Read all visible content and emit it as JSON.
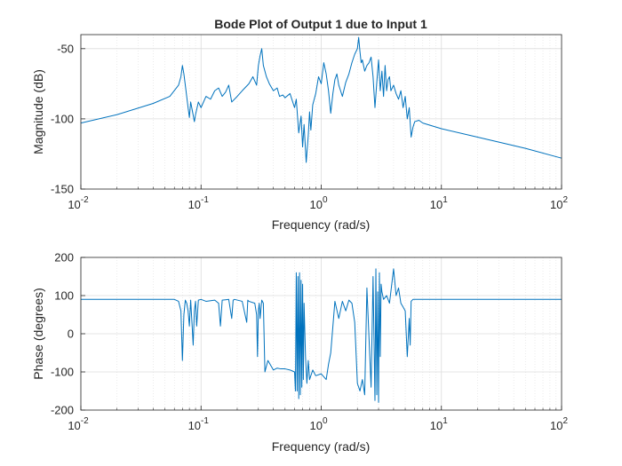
{
  "chart_data": [
    {
      "type": "line",
      "title": "Bode Plot of Output 1 due to Input 1",
      "xlabel": "Frequency (rad/s)",
      "ylabel": "Magnitude (dB)",
      "xscale": "log",
      "xlim": [
        0.01,
        100
      ],
      "ylim": [
        -150,
        -40
      ],
      "grid": true,
      "x_ticks": [
        {
          "base": "10",
          "exp": "-2"
        },
        {
          "base": "10",
          "exp": "-1"
        },
        {
          "base": "10",
          "exp": "0"
        },
        {
          "base": "10",
          "exp": "1"
        },
        {
          "base": "10",
          "exp": "2"
        }
      ],
      "y_ticks": [
        -50,
        -100,
        -150
      ],
      "series": [
        {
          "color": "#0072BD",
          "x": [
            0.01,
            0.02,
            0.04,
            0.055,
            0.065,
            0.068,
            0.07,
            0.072,
            0.075,
            0.078,
            0.08,
            0.082,
            0.085,
            0.088,
            0.09,
            0.095,
            0.1,
            0.11,
            0.12,
            0.13,
            0.14,
            0.15,
            0.16,
            0.17,
            0.18,
            0.2,
            0.22,
            0.25,
            0.27,
            0.29,
            0.3,
            0.31,
            0.32,
            0.33,
            0.35,
            0.37,
            0.4,
            0.43,
            0.45,
            0.48,
            0.5,
            0.55,
            0.6,
            0.62,
            0.65,
            0.68,
            0.7,
            0.72,
            0.75,
            0.78,
            0.8,
            0.82,
            0.85,
            0.9,
            0.95,
            1.0,
            1.05,
            1.1,
            1.15,
            1.2,
            1.25,
            1.3,
            1.35,
            1.4,
            1.5,
            1.6,
            1.7,
            1.8,
            1.9,
            2.0,
            2.05,
            2.1,
            2.15,
            2.2,
            2.3,
            2.4,
            2.5,
            2.6,
            2.7,
            2.8,
            2.9,
            3.0,
            3.1,
            3.2,
            3.3,
            3.4,
            3.5,
            3.6,
            3.7,
            3.8,
            4.0,
            4.2,
            4.4,
            4.6,
            4.8,
            5.0,
            5.2,
            5.4,
            5.6,
            5.8,
            6.0,
            6.5,
            7.0,
            10,
            20,
            50,
            100
          ],
          "y": [
            -103,
            -97,
            -89,
            -84,
            -76,
            -70,
            -62,
            -68,
            -80,
            -92,
            -99,
            -88,
            -95,
            -102,
            -97,
            -88,
            -92,
            -84,
            -86,
            -80,
            -78,
            -84,
            -81,
            -76,
            -88,
            -84,
            -80,
            -75,
            -70,
            -76,
            -62,
            -55,
            -50,
            -62,
            -70,
            -75,
            -80,
            -78,
            -84,
            -83,
            -85,
            -82,
            -92,
            -86,
            -110,
            -98,
            -120,
            -104,
            -131,
            -112,
            -95,
            -108,
            -90,
            -82,
            -70,
            -75,
            -60,
            -68,
            -80,
            -96,
            -82,
            -72,
            -68,
            -76,
            -84,
            -74,
            -68,
            -60,
            -54,
            -50,
            -42,
            -52,
            -60,
            -58,
            -66,
            -62,
            -60,
            -56,
            -70,
            -92,
            -74,
            -58,
            -80,
            -66,
            -84,
            -62,
            -80,
            -72,
            -70,
            -80,
            -76,
            -82,
            -86,
            -80,
            -92,
            -84,
            -100,
            -92,
            -113,
            -106,
            -102,
            -101,
            -103,
            -107,
            -113,
            -121,
            -128
          ]
        }
      ]
    },
    {
      "type": "line",
      "title": "",
      "xlabel": "Frequency (rad/s)",
      "ylabel": "Phase (degrees)",
      "xscale": "log",
      "xlim": [
        0.01,
        100
      ],
      "ylim": [
        -200,
        200
      ],
      "grid": true,
      "x_ticks": [
        {
          "base": "10",
          "exp": "-2"
        },
        {
          "base": "10",
          "exp": "-1"
        },
        {
          "base": "10",
          "exp": "0"
        },
        {
          "base": "10",
          "exp": "1"
        },
        {
          "base": "10",
          "exp": "2"
        }
      ],
      "y_ticks": [
        200,
        100,
        0,
        -100,
        -200
      ],
      "series": [
        {
          "color": "#0072BD",
          "x": [
            0.01,
            0.03,
            0.06,
            0.065,
            0.068,
            0.07,
            0.072,
            0.074,
            0.076,
            0.078,
            0.08,
            0.082,
            0.084,
            0.086,
            0.088,
            0.09,
            0.092,
            0.095,
            0.1,
            0.11,
            0.13,
            0.14,
            0.145,
            0.15,
            0.17,
            0.18,
            0.185,
            0.19,
            0.22,
            0.24,
            0.245,
            0.25,
            0.28,
            0.29,
            0.295,
            0.3,
            0.305,
            0.31,
            0.32,
            0.33,
            0.34,
            0.36,
            0.4,
            0.43,
            0.46,
            0.5,
            0.55,
            0.6,
            0.61,
            0.62,
            0.63,
            0.64,
            0.65,
            0.66,
            0.67,
            0.68,
            0.69,
            0.7,
            0.71,
            0.72,
            0.74,
            0.76,
            0.78,
            0.8,
            0.85,
            0.9,
            1.0,
            1.1,
            1.15,
            1.2,
            1.3,
            1.4,
            1.5,
            1.6,
            1.7,
            1.8,
            1.9,
            2.0,
            2.1,
            2.2,
            2.3,
            2.4,
            2.6,
            2.7,
            2.8,
            2.85,
            2.9,
            2.95,
            3.0,
            3.05,
            3.1,
            3.15,
            3.2,
            3.3,
            3.5,
            3.7,
            4.0,
            4.2,
            4.4,
            4.6,
            4.8,
            5.0,
            5.2,
            5.4,
            5.5,
            5.6,
            5.8,
            6,
            10,
            100
          ],
          "y": [
            90,
            90,
            90,
            85,
            60,
            -70,
            50,
            88,
            80,
            60,
            20,
            88,
            30,
            -30,
            60,
            85,
            20,
            88,
            90,
            85,
            88,
            80,
            20,
            88,
            90,
            40,
            88,
            90,
            85,
            30,
            88,
            85,
            80,
            50,
            -60,
            60,
            80,
            40,
            88,
            80,
            -100,
            -70,
            -95,
            -90,
            -92,
            -92,
            -95,
            -100,
            -150,
            160,
            -150,
            150,
            -170,
            160,
            -160,
            140,
            -140,
            130,
            -120,
            80,
            -60,
            -130,
            -70,
            -120,
            -95,
            -110,
            -105,
            -120,
            -80,
            -50,
            85,
            40,
            85,
            60,
            88,
            80,
            30,
            -130,
            -150,
            -120,
            -160,
            120,
            -140,
            150,
            -175,
            170,
            -160,
            110,
            -180,
            160,
            -60,
            130,
            110,
            90,
            100,
            80,
            170,
            100,
            120,
            80,
            70,
            60,
            -60,
            40,
            -30,
            85,
            90,
            90,
            90,
            90
          ]
        }
      ]
    }
  ]
}
